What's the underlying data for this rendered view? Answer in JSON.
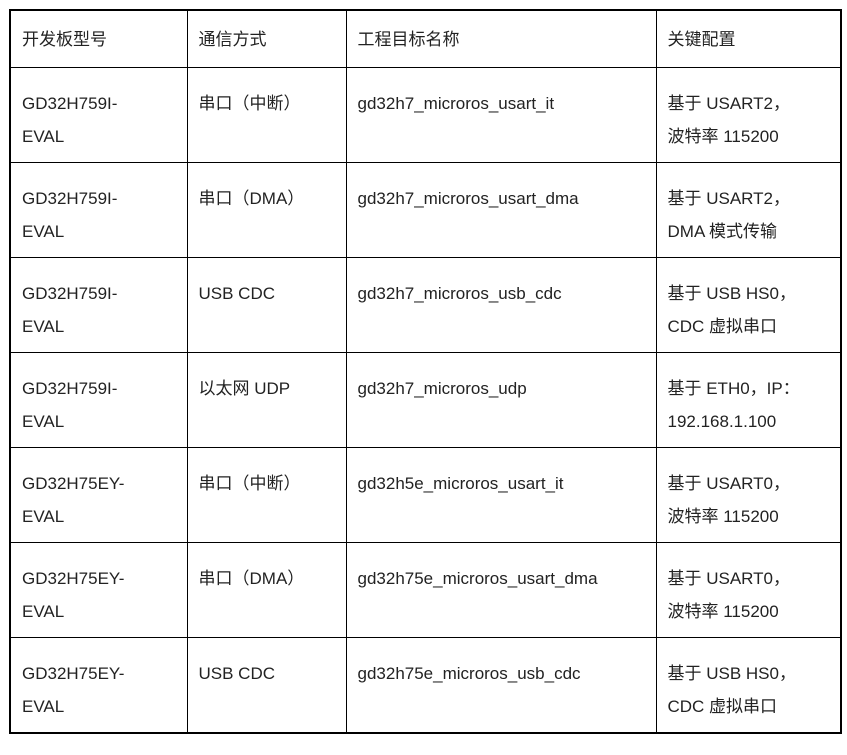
{
  "page": {
    "background_color": "#ffffff",
    "border_color": "#000000",
    "text_color": "#222222"
  },
  "table": {
    "columns": [
      "开发板型号",
      "通信方式",
      "工程目标名称",
      "关键配置"
    ],
    "rows": [
      {
        "board": "GD32H759I-\nEVAL",
        "comm": "串口（中断）",
        "target": "gd32h7_microros_usart_it",
        "config": "基于 USART2，\n波特率 115200"
      },
      {
        "board": "GD32H759I-\nEVAL",
        "comm": "串口（DMA）",
        "target": "gd32h7_microros_usart_dma",
        "config": "基于 USART2，\nDMA 模式传输"
      },
      {
        "board": "GD32H759I-\nEVAL",
        "comm": "USB CDC",
        "target": "gd32h7_microros_usb_cdc",
        "config": "基于 USB HS0，\nCDC 虚拟串口"
      },
      {
        "board": "GD32H759I-\nEVAL",
        "comm": "以太网 UDP",
        "target": "gd32h7_microros_udp",
        "config": "基于 ETH0，IP：\n192.168.1.100"
      },
      {
        "board": "GD32H75EY-\nEVAL",
        "comm": "串口（中断）",
        "target": "gd32h5e_microros_usart_it",
        "config": "基于 USART0，\n波特率 115200"
      },
      {
        "board": "GD32H75EY-\nEVAL",
        "comm": "串口（DMA）",
        "target": "gd32h75e_microros_usart_dma",
        "config": "基于 USART0，\n波特率 115200"
      },
      {
        "board": "GD32H75EY-\nEVAL",
        "comm": "USB CDC",
        "target": "gd32h75e_microros_usb_cdc",
        "config": "基于 USB HS0，\nCDC 虚拟串口"
      }
    ]
  }
}
